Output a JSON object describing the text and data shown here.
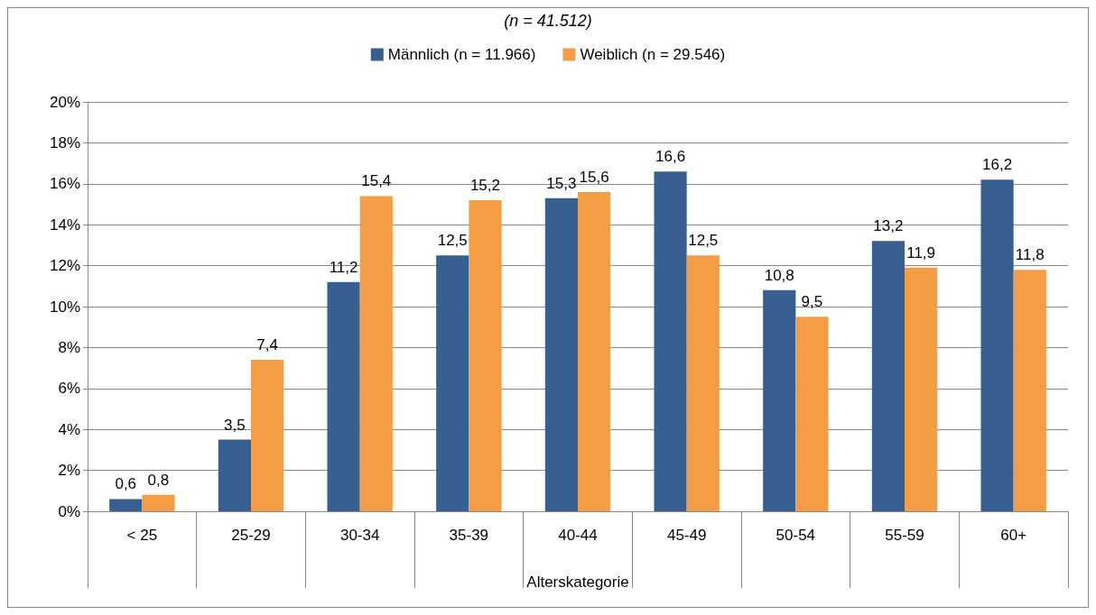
{
  "chart_data": {
    "type": "bar",
    "subtitle": "(n = 41.512)",
    "xlabel": "Alterskategorie",
    "categories": [
      "< 25",
      "25-29",
      "30-34",
      "35-39",
      "40-44",
      "45-49",
      "50-54",
      "55-59",
      "60+"
    ],
    "series": [
      {
        "name": "Männlich (n = 11.966)",
        "color": "#375f91",
        "values": [
          0.6,
          3.5,
          11.2,
          12.5,
          15.3,
          16.6,
          10.8,
          13.2,
          16.2
        ],
        "value_labels": [
          "0,6",
          "3,5",
          "11,2",
          "12,5",
          "15,3",
          "16,6",
          "10,8",
          "13,2",
          "16,2"
        ]
      },
      {
        "name": "Weiblich (n = 29.546)",
        "color": "#f59d45",
        "values": [
          0.8,
          7.4,
          15.4,
          15.2,
          15.6,
          12.5,
          9.5,
          11.9,
          11.8
        ],
        "value_labels": [
          "0,8",
          "7,4",
          "15,4",
          "15,2",
          "15,6",
          "12,5",
          "9,5",
          "11,9",
          "11,8"
        ]
      }
    ],
    "ylim": [
      0,
      20
    ],
    "yticks": [
      {
        "value": 0,
        "label": "0%"
      },
      {
        "value": 2,
        "label": "2%"
      },
      {
        "value": 4,
        "label": "4%"
      },
      {
        "value": 6,
        "label": "6%"
      },
      {
        "value": 8,
        "label": "8%"
      },
      {
        "value": 10,
        "label": "10%"
      },
      {
        "value": 12,
        "label": "12%"
      },
      {
        "value": 14,
        "label": "14%"
      },
      {
        "value": 16,
        "label": "16%"
      },
      {
        "value": 18,
        "label": "18%"
      },
      {
        "value": 20,
        "label": "20%"
      }
    ],
    "grid": "y",
    "legend": "top"
  }
}
